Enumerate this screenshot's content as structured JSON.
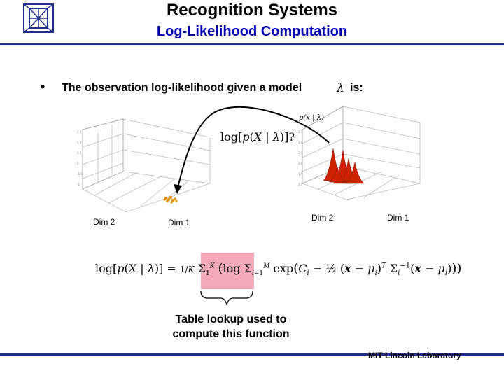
{
  "header": {
    "title": "Recognition Systems",
    "subtitle": "Log-Likelihood Computation"
  },
  "bullet": {
    "text": "The observation log-likelihood given a model",
    "symbol": "λ",
    "tail": "is:"
  },
  "left_plot": {
    "xlabel": "Dim 2",
    "ylabel": "Dim 1"
  },
  "right_plot": {
    "prob_label": "p(x | λ)",
    "xlabel": "Dim 2",
    "ylabel": "Dim 1"
  },
  "formula_question": "log[p(X | λ)]?",
  "formula_main": "log[p(X | λ)] = (1/K) Σ(1..K) log Σ(i=1..M) exp( C_i − ½ (x − μ_i)^T Σ_i^{-1} (x − μ_i) )",
  "caption": {
    "line1": "Table lookup used to",
    "line2": "compute this function"
  },
  "footer": "MIT Lincoln Laboratory",
  "colors": {
    "subtitle": "#0000b0",
    "rule": "#1f2f8f",
    "highlight": "#f4a9b8",
    "peaks": "#cc2200",
    "points": "#e09000"
  },
  "icons": {
    "logo": "mit-ll-logo"
  }
}
